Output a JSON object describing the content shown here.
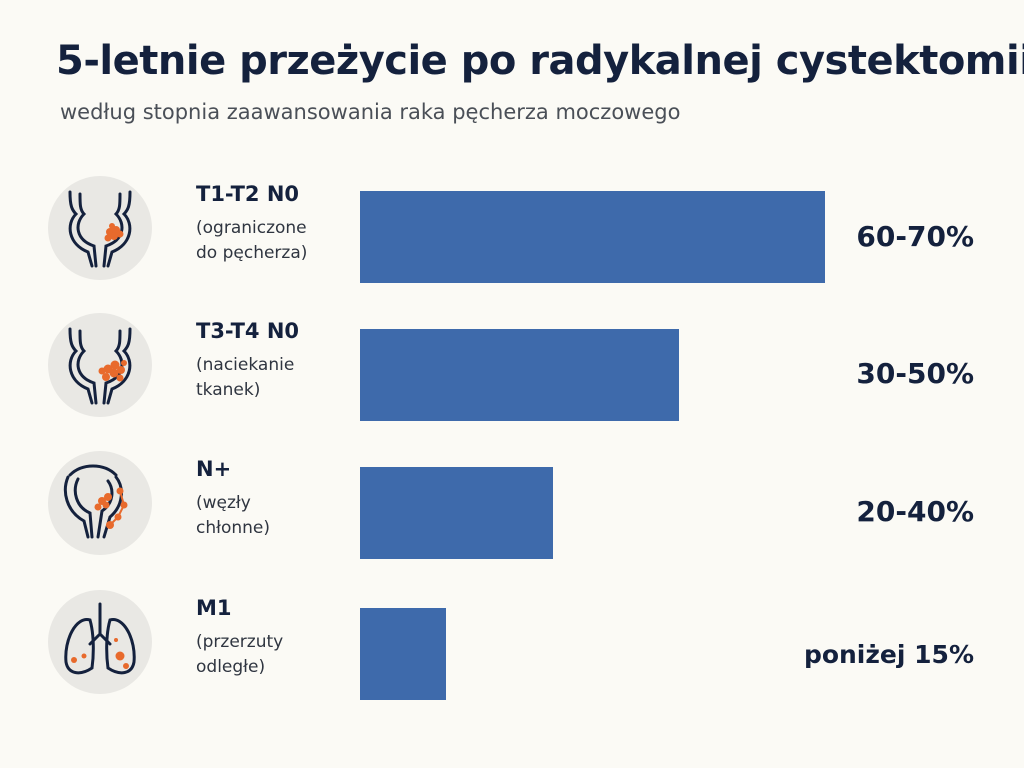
{
  "title": "5-letnie przeżycie po radykalnej cystektomii",
  "subtitle": "według stopnia zaawansowania raka pęcherza moczowego",
  "colors": {
    "bar": "#3e6aab",
    "accent": "#e86a2c",
    "ink": "#14213d"
  },
  "chart_data": {
    "type": "bar",
    "orientation": "horizontal",
    "title": "5-letnie przeżycie po radykalnej cystektomii",
    "subtitle": "według stopnia zaawansowania raka pęcherza moczowego",
    "categories": [
      "T1-T2 N0",
      "T3-T4 N0",
      "N+",
      "M1"
    ],
    "descriptions": [
      "(ograniczone do pęcherza)",
      "(naciekanie tkanek)",
      "(węzły chłonne)",
      "(przerzuty odległe)"
    ],
    "value_labels": [
      "60-70%",
      "30-50%",
      "20-40%",
      "poniżej 15%"
    ],
    "ranges": [
      [
        60,
        70
      ],
      [
        30,
        50
      ],
      [
        20,
        40
      ],
      [
        0,
        15
      ]
    ],
    "values": [
      70,
      48,
      29,
      13
    ],
    "xlim": [
      0,
      70
    ],
    "legend": "none",
    "grid": false
  },
  "rows": [
    {
      "stage": "T1-T2 N0",
      "desc": "(ograniczone\ndo pęcherza)",
      "label": "60-70%",
      "icon": "bladder-tumor-small-icon"
    },
    {
      "stage": "T3-T4 N0",
      "desc": "(naciekanie\ntkanek)",
      "label": "30-50%",
      "icon": "bladder-tumor-invasive-icon"
    },
    {
      "stage": "N+",
      "desc": "(węzły\nchłonne)",
      "label": "20-40%",
      "icon": "bladder-lymph-nodes-icon"
    },
    {
      "stage": "M1",
      "desc": "(przerzuty\nodległe)",
      "label": "poniżej 15%",
      "icon": "lungs-metastases-icon"
    }
  ]
}
